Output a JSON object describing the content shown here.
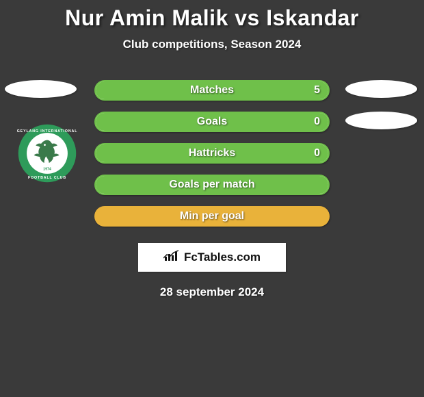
{
  "title": "Nur Amin Malik vs Iskandar",
  "subtitle": "Club competitions, Season 2024",
  "date": "28 september 2024",
  "fctables_label": "FcTables.com",
  "colors": {
    "bg": "#3a3a3a",
    "bar_green": "#6fc04a",
    "bar_border": "#6fc04a",
    "white": "#ffffff"
  },
  "club_badge": {
    "name": "Geylang International Football Club",
    "year": "1974",
    "ring_color": "#2e9b5a",
    "inner_color": "#ffffff"
  },
  "stats": [
    {
      "label": "Matches",
      "value": "5",
      "fill_pct": 100,
      "left_oval": true,
      "right_oval": true,
      "show_value": true,
      "empty": false
    },
    {
      "label": "Goals",
      "value": "0",
      "fill_pct": 100,
      "left_oval": false,
      "right_oval": true,
      "show_value": true,
      "empty": false
    },
    {
      "label": "Hattricks",
      "value": "0",
      "fill_pct": 100,
      "left_oval": false,
      "right_oval": false,
      "show_value": true,
      "empty": false
    },
    {
      "label": "Goals per match",
      "value": "",
      "fill_pct": 100,
      "left_oval": false,
      "right_oval": false,
      "show_value": false,
      "empty": false
    },
    {
      "label": "Min per goal",
      "value": "",
      "fill_pct": 0,
      "left_oval": false,
      "right_oval": false,
      "show_value": false,
      "empty": true
    }
  ]
}
